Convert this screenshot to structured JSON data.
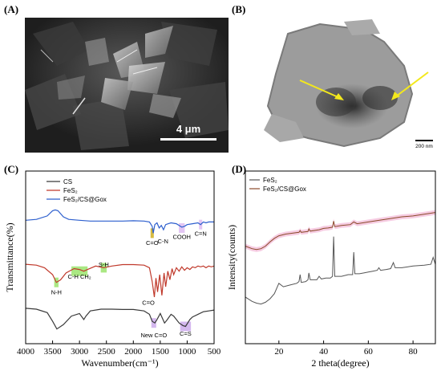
{
  "panels": {
    "a": {
      "label": "(A)",
      "scale_bar": "4 μm"
    },
    "b": {
      "label": "(B)",
      "scale_bar": "200 nm"
    },
    "c": {
      "label": "(C)"
    },
    "d": {
      "label": "(D)"
    }
  },
  "chart_data": [
    {
      "type": "line",
      "panel": "C",
      "xlabel": "Wavenumber(cm⁻¹)",
      "ylabel": "Transmittance(%)",
      "xlim": [
        4000,
        500
      ],
      "x_reversed": true,
      "x_ticks": [
        4000,
        3500,
        3000,
        2500,
        2000,
        1500,
        1000,
        500
      ],
      "y_ticks_shown": false,
      "legend_position": "top-left",
      "series": [
        {
          "name": "CS",
          "color": "#3a3a3a",
          "x": [
            4000,
            3800,
            3600,
            3500,
            3420,
            3300,
            3150,
            3000,
            2920,
            2880,
            2800,
            2600,
            2400,
            2200,
            2000,
            1800,
            1700,
            1650,
            1600,
            1560,
            1500,
            1420,
            1380,
            1300,
            1250,
            1150,
            1080,
            1030,
            950,
            900,
            800,
            700,
            600,
            500
          ],
          "y": [
            0.205,
            0.2,
            0.18,
            0.13,
            0.085,
            0.11,
            0.16,
            0.175,
            0.14,
            0.16,
            0.19,
            0.2,
            0.2,
            0.198,
            0.198,
            0.19,
            0.17,
            0.13,
            0.12,
            0.14,
            0.175,
            0.12,
            0.135,
            0.17,
            0.16,
            0.12,
            0.105,
            0.1,
            0.14,
            0.155,
            0.17,
            0.185,
            0.19,
            0.195
          ]
        },
        {
          "name": "FeS₂",
          "color": "#c0392b",
          "x": [
            4000,
            3800,
            3650,
            3500,
            3430,
            3350,
            3250,
            3100,
            3000,
            2920,
            2850,
            2700,
            2550,
            2400,
            2200,
            2000,
            1800,
            1700,
            1650,
            1610,
            1580,
            1550,
            1510,
            1470,
            1430,
            1400,
            1360,
            1320,
            1280,
            1250,
            1200,
            1150,
            1100,
            1050,
            1000,
            950,
            900,
            850,
            800,
            750,
            700,
            650,
            600,
            550,
            500
          ],
          "y": [
            0.46,
            0.455,
            0.44,
            0.4,
            0.355,
            0.37,
            0.41,
            0.435,
            0.43,
            0.42,
            0.43,
            0.45,
            0.44,
            0.45,
            0.458,
            0.458,
            0.455,
            0.44,
            0.36,
            0.27,
            0.38,
            0.3,
            0.4,
            0.28,
            0.41,
            0.33,
            0.42,
            0.37,
            0.435,
            0.4,
            0.44,
            0.42,
            0.445,
            0.425,
            0.44,
            0.43,
            0.445,
            0.44,
            0.45,
            0.445,
            0.45,
            0.44,
            0.45,
            0.445,
            0.45
          ]
        },
        {
          "name": "FeS₂/CS@Gox",
          "color": "#2d5fce",
          "x": [
            4000,
            3800,
            3600,
            3500,
            3450,
            3400,
            3300,
            3200,
            3000,
            2800,
            2600,
            2400,
            2200,
            2000,
            1800,
            1700,
            1650,
            1630,
            1600,
            1560,
            1520,
            1480,
            1440,
            1400,
            1350,
            1300,
            1200,
            1100,
            1050,
            1000,
            900,
            800,
            750,
            700,
            650,
            600,
            500
          ],
          "y": [
            0.715,
            0.72,
            0.74,
            0.77,
            0.775,
            0.77,
            0.735,
            0.72,
            0.715,
            0.71,
            0.71,
            0.71,
            0.71,
            0.712,
            0.71,
            0.705,
            0.68,
            0.64,
            0.69,
            0.7,
            0.67,
            0.685,
            0.66,
            0.69,
            0.695,
            0.7,
            0.695,
            0.675,
            0.68,
            0.69,
            0.695,
            0.7,
            0.69,
            0.705,
            0.7,
            0.705,
            0.705
          ]
        }
      ],
      "annotations": [
        {
          "text": "C=O",
          "x": 1650
        },
        {
          "text": "C-N",
          "x": 1450
        },
        {
          "text": "COOH",
          "x": 1100
        },
        {
          "text": "C=N",
          "x": 750
        },
        {
          "text": "N-H",
          "x": 3430
        },
        {
          "text": "C-H CH₂",
          "x": 3000
        },
        {
          "text": "S-H",
          "x": 2550
        },
        {
          "text": "C=O",
          "x": 1720
        },
        {
          "text": "New C=O",
          "x": 1620
        },
        {
          "text": "C=S",
          "x": 1030
        }
      ]
    },
    {
      "type": "line",
      "panel": "D",
      "xlabel": "2 theta(degree)",
      "ylabel": "Intensity(counts)",
      "xlim": [
        5,
        90
      ],
      "x_ticks": [
        20,
        40,
        60,
        80
      ],
      "y_ticks_shown": false,
      "legend_position": "top-left",
      "series": [
        {
          "name": "FeS₂",
          "color": "#555555",
          "x": [
            5,
            8,
            10,
            12,
            14,
            16,
            18,
            20,
            22,
            25,
            28,
            29,
            29.5,
            30,
            32,
            33,
            33.4,
            34,
            37,
            38,
            39,
            41,
            43,
            44,
            44.5,
            45,
            48,
            51,
            53,
            53.5,
            54,
            56,
            58,
            60,
            62,
            64,
            64.7,
            65.5,
            68,
            70,
            71.2,
            72,
            75,
            80,
            85,
            88,
            89,
            90
          ],
          "y": [
            0.27,
            0.245,
            0.235,
            0.23,
            0.24,
            0.26,
            0.29,
            0.35,
            0.33,
            0.34,
            0.35,
            0.36,
            0.4,
            0.355,
            0.36,
            0.37,
            0.41,
            0.37,
            0.37,
            0.39,
            0.375,
            0.38,
            0.38,
            0.39,
            0.62,
            0.39,
            0.39,
            0.4,
            0.4,
            0.53,
            0.405,
            0.405,
            0.41,
            0.415,
            0.42,
            0.425,
            0.44,
            0.425,
            0.43,
            0.435,
            0.47,
            0.44,
            0.44,
            0.45,
            0.455,
            0.46,
            0.5,
            0.46
          ]
        },
        {
          "name": "FeS₂/CS@Gox",
          "color": "#8b4a2a",
          "x": [
            5,
            8,
            10,
            12,
            14,
            16,
            18,
            20,
            23,
            26,
            29,
            29.5,
            30,
            33,
            33.4,
            34,
            38,
            40,
            42,
            44,
            44.5,
            45,
            48,
            52,
            53.5,
            55,
            60,
            65,
            70,
            75,
            80,
            85,
            90
          ],
          "y": [
            0.565,
            0.55,
            0.545,
            0.55,
            0.565,
            0.59,
            0.61,
            0.625,
            0.635,
            0.64,
            0.645,
            0.655,
            0.645,
            0.65,
            0.665,
            0.652,
            0.66,
            0.668,
            0.67,
            0.675,
            0.71,
            0.678,
            0.685,
            0.69,
            0.705,
            0.695,
            0.705,
            0.715,
            0.725,
            0.735,
            0.74,
            0.75,
            0.76
          ]
        }
      ]
    }
  ]
}
